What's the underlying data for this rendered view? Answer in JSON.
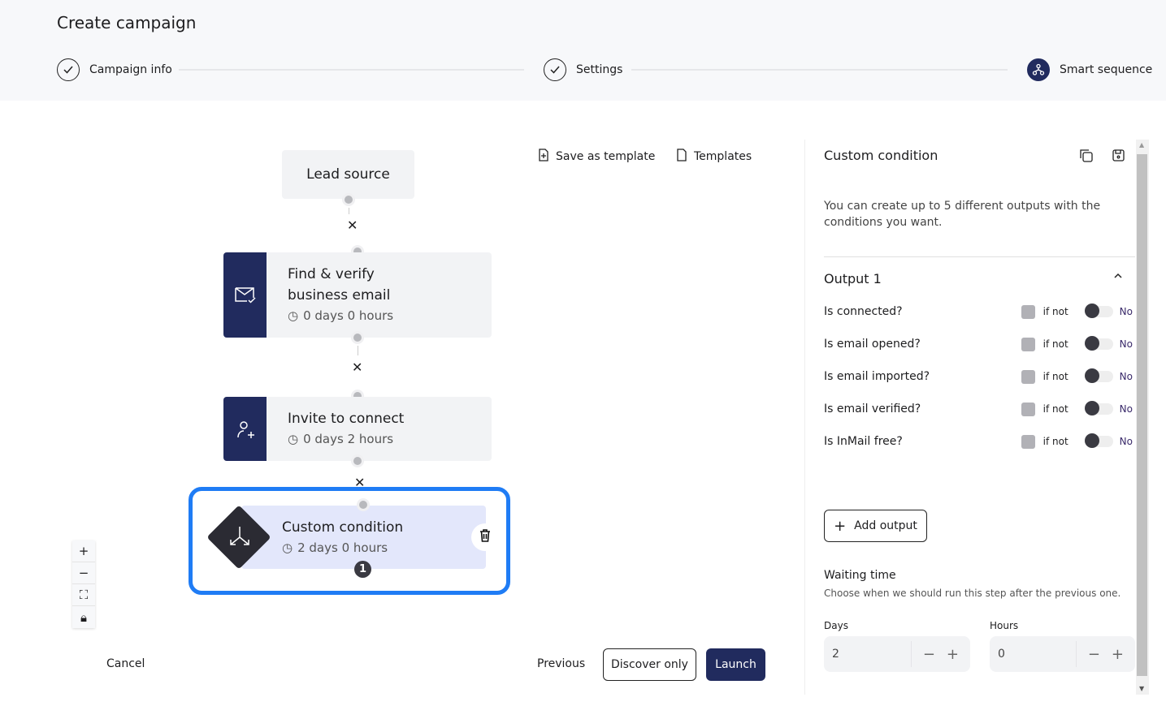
{
  "header": {
    "title": "Create campaign",
    "steps": [
      {
        "label": "Campaign info",
        "state": "done",
        "icon": "check-icon"
      },
      {
        "label": "Settings",
        "state": "done",
        "icon": "check-icon"
      },
      {
        "label": "Smart sequence",
        "state": "active",
        "icon": "sequence-icon"
      }
    ]
  },
  "toolbar": {
    "save_template": "Save as template",
    "templates": "Templates"
  },
  "flow": {
    "lead_source": "Lead source",
    "nodes": [
      {
        "title_line1": "Find & verify",
        "title_line2": "business email",
        "wait": "0 days 0 hours",
        "icon": "email-check-icon"
      },
      {
        "title_line1": "Invite to connect",
        "wait": "0 days 2 hours",
        "icon": "user-plus-icon"
      },
      {
        "title_line1": "Custom condition",
        "wait": "2 days 0 hours",
        "icon": "split-icon",
        "badge": "1",
        "selected": true
      }
    ]
  },
  "panel": {
    "title": "Custom condition",
    "description": "You can create up to 5 different outputs with the conditions you want.",
    "output_title": "Output 1",
    "conditions": [
      {
        "label": "Is connected?",
        "if_not": "if not",
        "value": "No"
      },
      {
        "label": "Is email opened?",
        "if_not": "if not",
        "value": "No"
      },
      {
        "label": "Is email imported?",
        "if_not": "if not",
        "value": "No"
      },
      {
        "label": "Is email verified?",
        "if_not": "if not",
        "value": "No"
      },
      {
        "label": "Is InMail free?",
        "if_not": "if not",
        "value": "No"
      }
    ],
    "add_output": "Add output",
    "waiting_title": "Waiting time",
    "waiting_desc": "Choose when we should run this step after the previous one.",
    "days_label": "Days",
    "days_value": "2",
    "hours_label": "Hours",
    "hours_value": "0"
  },
  "footer": {
    "cancel": "Cancel",
    "previous": "Previous",
    "discover_only": "Discover only",
    "launch": "Launch"
  },
  "colors": {
    "navy": "#212b5e",
    "selected": "#1f7cf5"
  }
}
